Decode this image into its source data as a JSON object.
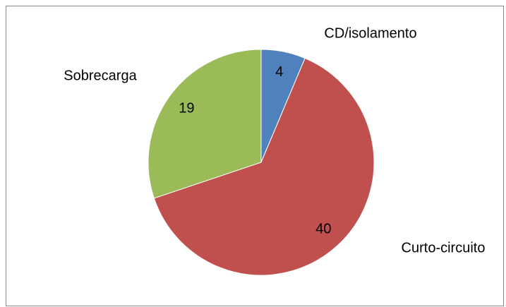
{
  "chart_data": {
    "type": "pie",
    "categories": [
      "CD/isolamento",
      "Curto-circuito",
      "Sobrecarga"
    ],
    "values": [
      4,
      40,
      19
    ],
    "colors": [
      "#4f81bd",
      "#c0504d",
      "#9bbb59"
    ]
  }
}
